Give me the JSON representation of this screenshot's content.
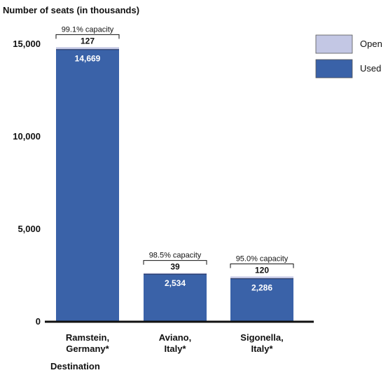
{
  "chart_data": {
    "type": "bar",
    "stacked": true,
    "ylabel": "Number of seats (in thousands)",
    "xlabel": "Destination",
    "ylim": [
      0,
      15000
    ],
    "yticks": [
      {
        "value": 0,
        "label": "0"
      },
      {
        "value": 5000,
        "label": "5,000"
      },
      {
        "value": 10000,
        "label": "10,000"
      },
      {
        "value": 15000,
        "label": "15,000"
      }
    ],
    "categories": [
      [
        "Ramstein,",
        "Germany*"
      ],
      [
        "Aviano,",
        "Italy*"
      ],
      [
        "Sigonella,",
        "Italy*"
      ]
    ],
    "series": [
      {
        "name": "Used",
        "color": "#3a62a8",
        "values": [
          14669,
          2534,
          2286
        ],
        "labels": [
          "14,669",
          "2,534",
          "2,286"
        ]
      },
      {
        "name": "Open",
        "color": "#c3c7e4",
        "values": [
          127,
          39,
          120
        ],
        "labels": [
          "127",
          "39",
          "120"
        ]
      }
    ],
    "capacity_labels": [
      "99.1% capacity",
      "98.5% capacity",
      "95.0% capacity"
    ],
    "legend": [
      {
        "name": "Open",
        "color": "#c3c7e4"
      },
      {
        "name": "Used",
        "color": "#3a62a8"
      }
    ],
    "legend_position": "top-right",
    "grid": false
  }
}
